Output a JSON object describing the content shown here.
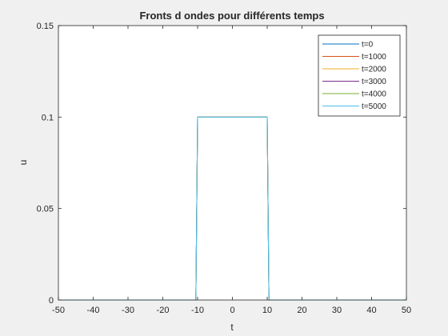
{
  "chart_data": {
    "type": "line",
    "title": "Fronts d ondes pour différents temps",
    "xlabel": "t",
    "ylabel": "u",
    "xlim": [
      -50,
      50
    ],
    "ylim": [
      0,
      0.15
    ],
    "xticks": [
      -50,
      -40,
      -30,
      -20,
      -10,
      0,
      10,
      20,
      30,
      40,
      50
    ],
    "xtick_labels": [
      "-50",
      "-40",
      "-30",
      "-20",
      "-10",
      "0",
      "10",
      "20",
      "30",
      "40",
      "50"
    ],
    "yticks": [
      0,
      0.05,
      0.1,
      0.15
    ],
    "ytick_labels": [
      "0",
      "0.05",
      "0.1",
      "0.15"
    ],
    "grid": false,
    "legend_position": "top-right",
    "series": [
      {
        "name": "t=0",
        "color": "#0072BD",
        "x": [
          -50,
          -10.5,
          -10,
          10,
          10.5,
          50
        ],
        "y": [
          0,
          0,
          0.1,
          0.1,
          0,
          0
        ]
      },
      {
        "name": "t=1000",
        "color": "#D95319",
        "x": [
          -50,
          -10.5,
          -10,
          10,
          10.5,
          50
        ],
        "y": [
          0,
          0,
          0.1,
          0.1,
          0,
          0
        ]
      },
      {
        "name": "t=2000",
        "color": "#EDB120",
        "x": [
          -50,
          -10.5,
          -10,
          10,
          10.5,
          50
        ],
        "y": [
          0,
          0,
          0.1,
          0.1,
          0,
          0
        ]
      },
      {
        "name": "t=3000",
        "color": "#7E2F8E",
        "x": [
          -50,
          -10.5,
          -10,
          10,
          10.5,
          50
        ],
        "y": [
          0,
          0,
          0.1,
          0.1,
          0,
          0
        ]
      },
      {
        "name": "t=4000",
        "color": "#77AC30",
        "x": [
          -50,
          -10.5,
          -10,
          10,
          10.5,
          50
        ],
        "y": [
          0,
          0,
          0.1,
          0.1,
          0,
          0
        ]
      },
      {
        "name": "t=5000",
        "color": "#4DBEEE",
        "x": [
          -50,
          -10.5,
          -10,
          10,
          10.5,
          50
        ],
        "y": [
          0,
          0,
          0.1,
          0.1,
          0,
          0
        ]
      }
    ]
  }
}
